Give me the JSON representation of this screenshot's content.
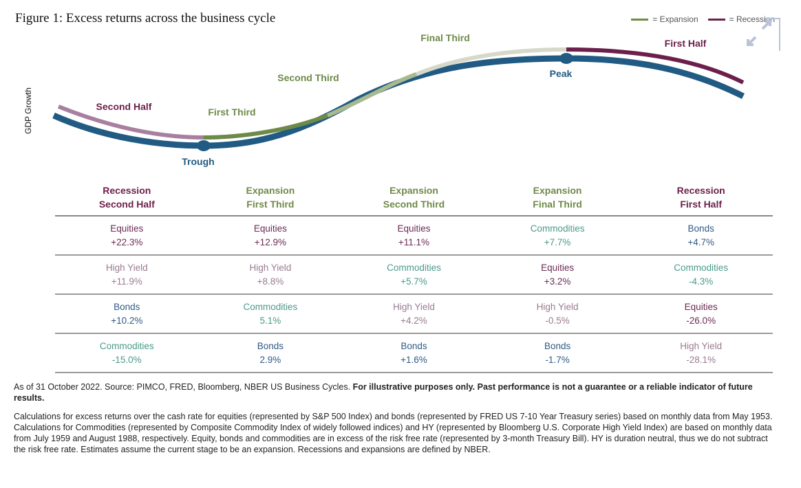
{
  "title": "Figure 1: Excess returns across the business cycle",
  "legend": {
    "expansion": "= Expansion",
    "recession": "= Recession"
  },
  "colors": {
    "curve": "#215a82",
    "recession": "#6b1f4a",
    "recession_light": "#a97fa0",
    "expansion": "#6e8a48",
    "expansion_light": "#a9b98f",
    "expansion_pale": "#d6d9c9",
    "equities": "#6b2a55",
    "high_yield": "#9a7a90",
    "bonds": "#2f5a84",
    "commodities": "#4a9a8a"
  },
  "y_axis_label": "GDP Growth",
  "phase_labels": {
    "second_half": "Second Half",
    "first_third": "First Third",
    "second_third": "Second Third",
    "final_third": "Final Third",
    "first_half": "First Half",
    "trough": "Trough",
    "peak": "Peak"
  },
  "table": {
    "columns": [
      {
        "phase": "Recession",
        "stage": "Second Half",
        "type": "recession",
        "rows": [
          {
            "asset": "Equities",
            "value": "+22.3%"
          },
          {
            "asset": "High Yield",
            "value": "+11.9%"
          },
          {
            "asset": "Bonds",
            "value": "+10.2%"
          },
          {
            "asset": "Commodities",
            "value": "-15.0%"
          }
        ]
      },
      {
        "phase": "Expansion",
        "stage": "First Third",
        "type": "expansion",
        "rows": [
          {
            "asset": "Equities",
            "value": "+12.9%"
          },
          {
            "asset": "High Yield",
            "value": "+8.8%"
          },
          {
            "asset": "Commodities",
            "value": "5.1%"
          },
          {
            "asset": "Bonds",
            "value": "2.9%"
          }
        ]
      },
      {
        "phase": "Expansion",
        "stage": "Second Third",
        "type": "expansion",
        "rows": [
          {
            "asset": "Equities",
            "value": "+11.1%"
          },
          {
            "asset": "Commodities",
            "value": "+5.7%"
          },
          {
            "asset": "High Yield",
            "value": "+4.2%"
          },
          {
            "asset": "Bonds",
            "value": "+1.6%"
          }
        ]
      },
      {
        "phase": "Expansion",
        "stage": "Final Third",
        "type": "expansion",
        "rows": [
          {
            "asset": "Commodities",
            "value": "+7.7%"
          },
          {
            "asset": "Equities",
            "value": "+3.2%"
          },
          {
            "asset": "High Yield",
            "value": "-0.5%"
          },
          {
            "asset": "Bonds",
            "value": "-1.7%"
          }
        ]
      },
      {
        "phase": "Recession",
        "stage": "First Half",
        "type": "recession",
        "rows": [
          {
            "asset": "Bonds",
            "value": "+4.7%"
          },
          {
            "asset": "Commodities",
            "value": "-4.3%"
          },
          {
            "asset": "Equities",
            "value": "-26.0%"
          },
          {
            "asset": "High Yield",
            "value": "-28.1%"
          }
        ]
      }
    ]
  },
  "footnote": {
    "source": "As of  31 October 2022. Source: PIMCO, FRED, Bloomberg, NBER US Business Cycles. ",
    "disclaimer": "For illustrative purposes only. Past performance is not a guarantee or a reliable indicator of future results.",
    "methodology": "Calculations for excess returns over the cash rate for equities (represented by S&P 500 Index) and bonds (represented by FRED US 7-10 Year Treasury series) based on monthly data from May 1953. Calculations for Commodities (represented by Composite Commodity Index of widely followed indices) and HY (represented by Bloomberg U.S. Corporate High Yield Index) are based on monthly data from July 1959 and August 1988, respectively. Equity, bonds and commodities are in excess of the risk free rate (represented by 3-month Treasury Bill). HY is duration neutral, thus we do not subtract the risk free rate. Estimates assume the current stage to be an expansion. Recessions and expansions are defined by NBER."
  }
}
